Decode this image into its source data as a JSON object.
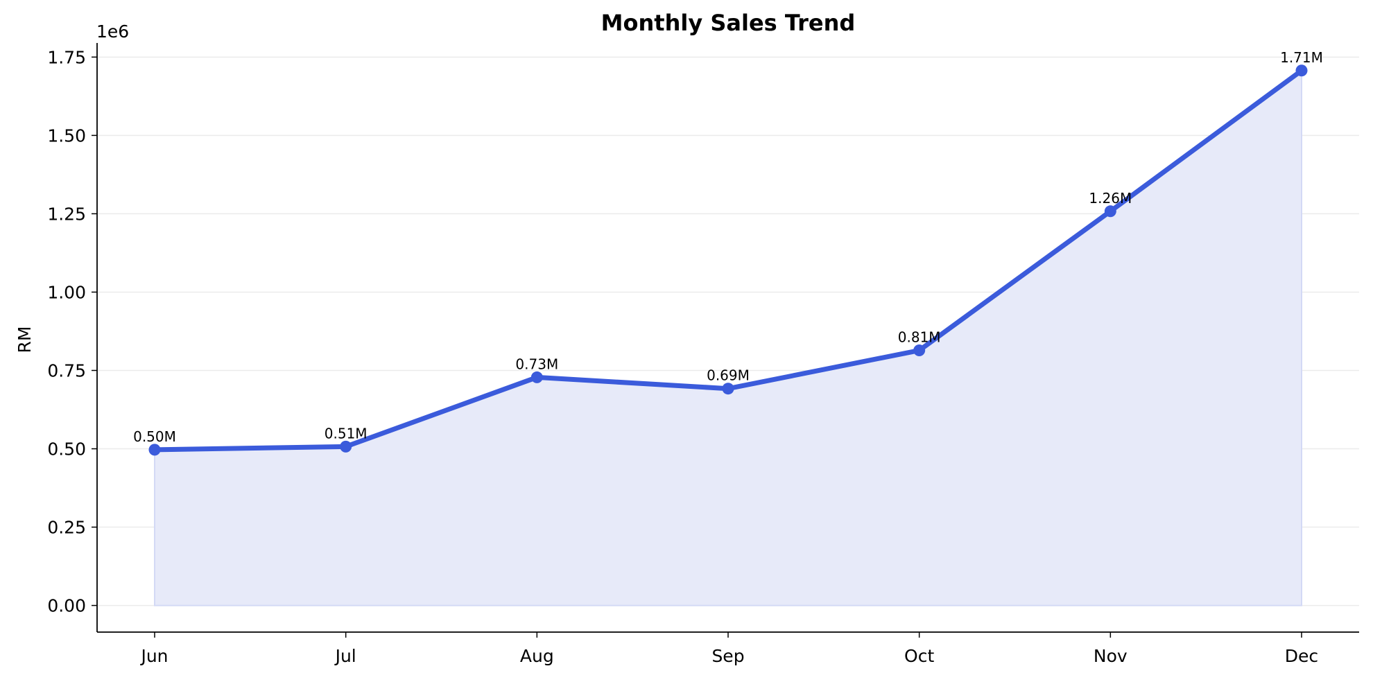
{
  "chart_data": {
    "type": "area",
    "title": "Monthly Sales Trend",
    "xlabel": "",
    "ylabel": "RM",
    "y_offset_label": "1e6",
    "categories": [
      "Jun",
      "Jul",
      "Aug",
      "Sep",
      "Oct",
      "Nov",
      "Dec"
    ],
    "series": [
      {
        "values": [
          497000,
          507000,
          728000,
          692000,
          814000,
          1258000,
          1707000
        ],
        "labels": [
          "0.50M",
          "0.51M",
          "0.73M",
          "0.69M",
          "0.81M",
          "1.26M",
          "1.71M"
        ]
      }
    ],
    "y_ticks": [
      0,
      250000,
      500000,
      750000,
      1000000,
      1250000,
      1500000,
      1750000
    ],
    "y_tick_labels": [
      "0.00",
      "0.25",
      "0.50",
      "0.75",
      "1.00",
      "1.25",
      "1.50",
      "1.75"
    ],
    "ylim": [
      -85000,
      1795000
    ],
    "grid": "horizontal",
    "legend": "none",
    "colors": {
      "line": "#3b5bdb",
      "fill": "#e7eaf9",
      "fill_edge": "#d3d9f5",
      "grid": "#ebebeb",
      "axis": "#000000"
    }
  }
}
